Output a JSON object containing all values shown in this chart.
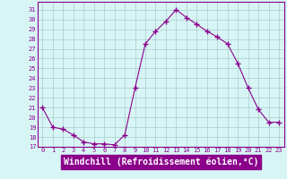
{
  "x": [
    0,
    1,
    2,
    3,
    4,
    5,
    6,
    7,
    8,
    9,
    10,
    11,
    12,
    13,
    14,
    15,
    16,
    17,
    18,
    19,
    20,
    21,
    22,
    23
  ],
  "y": [
    21.0,
    19.0,
    18.8,
    18.2,
    17.5,
    17.3,
    17.3,
    17.2,
    18.2,
    23.0,
    27.5,
    28.8,
    29.8,
    31.0,
    30.2,
    29.5,
    28.8,
    28.2,
    27.5,
    25.5,
    23.0,
    20.8,
    19.5,
    19.5
  ],
  "line_color": "#8B008B",
  "marker": "+",
  "marker_size": 4,
  "bg_color": "#d8f5f5",
  "grid_color": "#aacccc",
  "xlabel": "Windchill (Refroidissement éolien,°C)",
  "xlabel_fontsize": 7,
  "xlabel_bg": "#8B008B",
  "xlabel_fg": "#ffffff",
  "ylabel_values": [
    17,
    18,
    19,
    20,
    21,
    22,
    23,
    24,
    25,
    26,
    27,
    28,
    29,
    30,
    31
  ],
  "ylim": [
    17,
    31.8
  ],
  "xlim": [
    -0.5,
    23.5
  ],
  "tick_color": "#8B008B",
  "tick_fontsize": 5,
  "spine_color": "#8B008B"
}
